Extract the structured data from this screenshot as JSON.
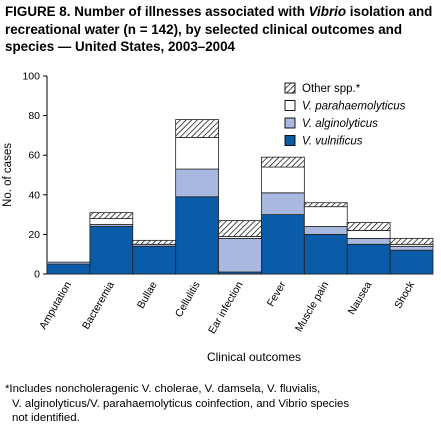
{
  "title": {
    "prefix": "FIGURE 8. Number of illnesses associated with ",
    "italic": "Vibrio",
    "suffix": " isolation and recreational water (n = 142), by selected clinical outcomes and species — United States, 2003–2004"
  },
  "footnote": {
    "line1": "*Includes noncholeragenic V. cholerae, V. damsela, V. fluvialis,",
    "line2": "V. alginolyticus/V. parahaemolyticus coinfection, and Vibrio species",
    "line3": "not identified."
  },
  "chart_data": {
    "type": "bar",
    "stacked": true,
    "categories": [
      "Amputation",
      "Bacteremia",
      "Bullae",
      "Cellulitis",
      "Ear infection",
      "Fever",
      "Muscle pain",
      "Nausea",
      "Shock"
    ],
    "series": [
      {
        "name": "V. vulnificus",
        "color": "#0a5ba8",
        "pattern": "solid",
        "values": [
          5,
          24,
          14,
          39,
          1,
          30,
          20,
          15,
          12
        ]
      },
      {
        "name": "V. alginolyticus",
        "color": "#a9b8df",
        "pattern": "solid",
        "values": [
          1,
          1,
          1,
          14,
          17,
          11,
          4,
          3,
          2
        ]
      },
      {
        "name": "V. parahaemolyticus",
        "color": "#ffffff",
        "pattern": "solid",
        "values": [
          0,
          3,
          0,
          16,
          1,
          13,
          10,
          4,
          1
        ]
      },
      {
        "name": "Other spp.*",
        "color": "#ffffff",
        "pattern": "hatch",
        "values": [
          0,
          3,
          2,
          9,
          8,
          5,
          2,
          4,
          3
        ]
      }
    ],
    "xlabel": "Clinical outcomes",
    "ylabel": "No. of cases",
    "ylim": [
      0,
      100
    ],
    "yticks": [
      0,
      20,
      40,
      60,
      80,
      100
    ],
    "grid": false,
    "legend_position": "top-right"
  }
}
